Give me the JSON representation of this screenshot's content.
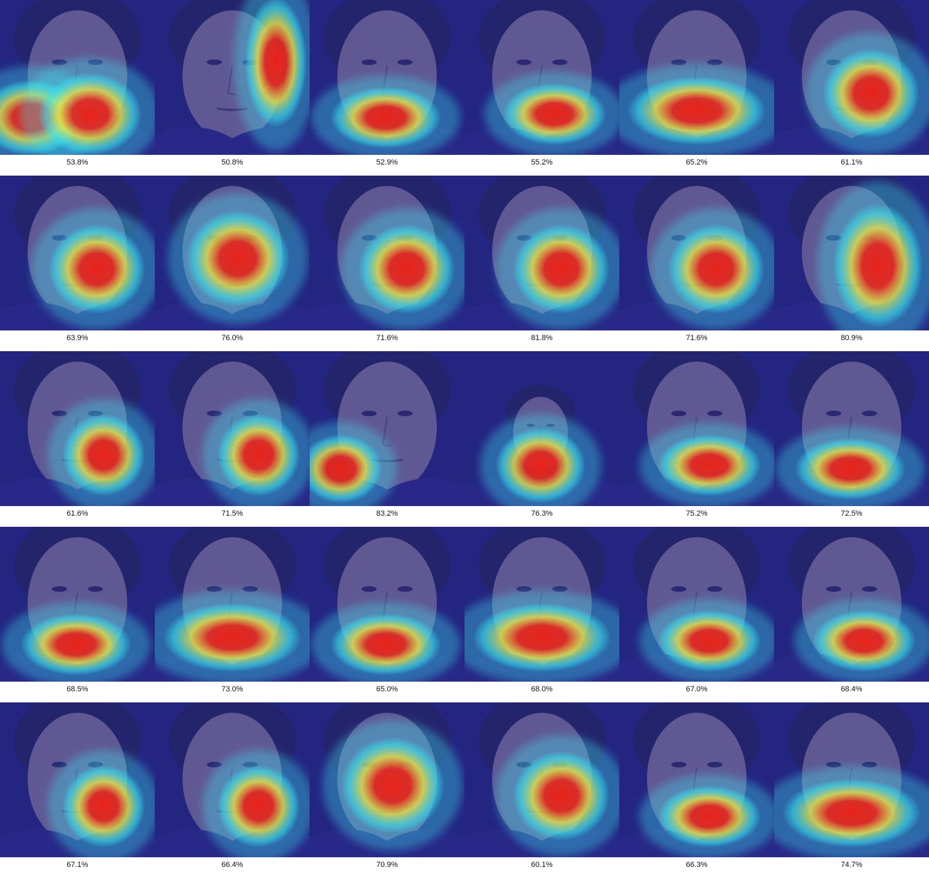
{
  "grid": {
    "rows": 5,
    "columns": 6,
    "colors": {
      "overlay_base": "#2b2f9e",
      "cold": "#1f2fb5",
      "cyan": "#39e6f0",
      "yellow": "#f2e23a",
      "hot": "#e8231a",
      "skin": "#a08b86",
      "hair": "#1c1830",
      "background_dark": "#1a1a5e"
    },
    "cells": [
      {
        "label": "53.8%",
        "heat": "cheeks-low"
      },
      {
        "label": "50.8%",
        "heat": "right-vertical"
      },
      {
        "label": "52.9%",
        "heat": "mouth"
      },
      {
        "label": "55.2%",
        "heat": "mouth-right"
      },
      {
        "label": "65.2%",
        "heat": "mouth-wide"
      },
      {
        "label": "61.1%",
        "heat": "right-cheek"
      },
      {
        "label": "63.9%",
        "heat": "right-cheek"
      },
      {
        "label": "76.0%",
        "heat": "center-cheek"
      },
      {
        "label": "71.6%",
        "heat": "right-cheek"
      },
      {
        "label": "81.8%",
        "heat": "right-cheek"
      },
      {
        "label": "71.6%",
        "heat": "right-cheek"
      },
      {
        "label": "80.9%",
        "heat": "right-face"
      },
      {
        "label": "61.6%",
        "heat": "right-jaw"
      },
      {
        "label": "71.5%",
        "heat": "right-jaw"
      },
      {
        "label": "83.2%",
        "heat": "left-low"
      },
      {
        "label": "76.3%",
        "heat": "small-face"
      },
      {
        "label": "75.2%",
        "heat": "mouth-right"
      },
      {
        "label": "72.5%",
        "heat": "mouth"
      },
      {
        "label": "68.5%",
        "heat": "mouth"
      },
      {
        "label": "73.0%",
        "heat": "mouth-wide"
      },
      {
        "label": "65.0%",
        "heat": "mouth"
      },
      {
        "label": "68.0%",
        "heat": "mouth-wide"
      },
      {
        "label": "67.0%",
        "heat": "mouth-right"
      },
      {
        "label": "68.4%",
        "heat": "mouth-right"
      },
      {
        "label": "67.1%",
        "heat": "right-jaw"
      },
      {
        "label": "66.4%",
        "heat": "right-jaw"
      },
      {
        "label": "70.9%",
        "heat": "center-cheek"
      },
      {
        "label": "60.1%",
        "heat": "right-cheek"
      },
      {
        "label": "66.3%",
        "heat": "mouth-right"
      },
      {
        "label": "74.7%",
        "heat": "mouth-wide"
      }
    ]
  }
}
